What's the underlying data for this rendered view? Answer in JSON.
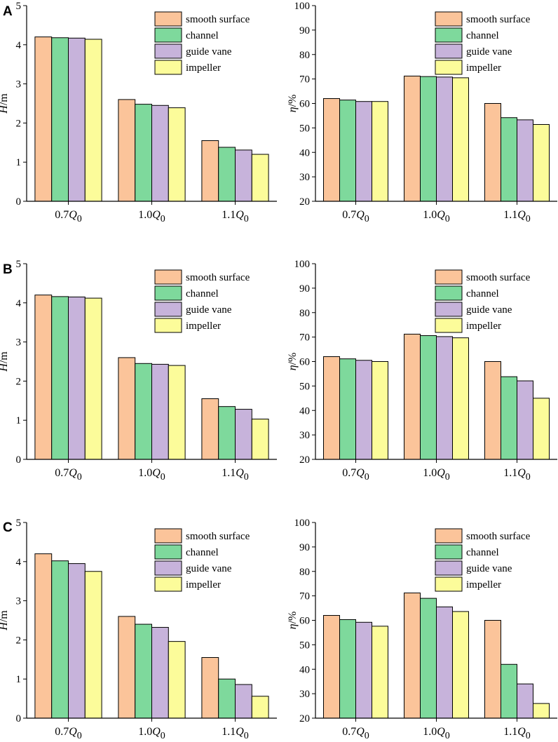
{
  "colors": {
    "smooth surface": "#fbc49a",
    "channel": "#7ed99c",
    "guide vane": "#c7b3db",
    "impeller": "#fcfc9a"
  },
  "chart_data": [
    {
      "panel": "A",
      "type": "bar",
      "title": "",
      "ylabel_italic": "H",
      "ylabel_unit": "/m",
      "ylim": [
        0,
        5
      ],
      "yticks": [
        "0",
        "1",
        "2",
        "3",
        "4",
        "5"
      ],
      "categories": [
        {
          "base": "0.7",
          "q": "Q",
          "sub": "0"
        },
        {
          "base": "1.0",
          "q": "Q",
          "sub": "0"
        },
        {
          "base": "1.1",
          "q": "Q",
          "sub": "0"
        }
      ],
      "series": [
        {
          "name": "smooth surface",
          "values": [
            4.2,
            2.6,
            1.55
          ]
        },
        {
          "name": "channel",
          "values": [
            4.18,
            2.48,
            1.38
          ]
        },
        {
          "name": "guide vane",
          "values": [
            4.17,
            2.45,
            1.31
          ]
        },
        {
          "name": "impeller",
          "values": [
            4.14,
            2.39,
            1.2
          ]
        }
      ],
      "legend": "top-right"
    },
    {
      "panel": "",
      "type": "bar",
      "title": "",
      "ylabel_italic": "η",
      "ylabel_unit": "/%",
      "ylim": [
        20,
        100
      ],
      "yticks": [
        "20",
        "30",
        "40",
        "50",
        "60",
        "70",
        "80",
        "90",
        "100"
      ],
      "categories": [
        {
          "base": "0.7",
          "q": "Q",
          "sub": "0"
        },
        {
          "base": "1.0",
          "q": "Q",
          "sub": "0"
        },
        {
          "base": "1.1",
          "q": "Q",
          "sub": "0"
        }
      ],
      "series": [
        {
          "name": "smooth surface",
          "values": [
            62.0,
            71.2,
            60.0
          ]
        },
        {
          "name": "channel",
          "values": [
            61.4,
            71.0,
            54.2
          ]
        },
        {
          "name": "guide vane",
          "values": [
            60.8,
            70.8,
            53.3
          ]
        },
        {
          "name": "impeller",
          "values": [
            60.8,
            70.5,
            51.4
          ]
        }
      ],
      "legend": "top-right"
    },
    {
      "panel": "B",
      "type": "bar",
      "title": "",
      "ylabel_italic": "H",
      "ylabel_unit": "/m",
      "ylim": [
        0,
        5
      ],
      "yticks": [
        "0",
        "1",
        "2",
        "3",
        "4",
        "5"
      ],
      "categories": [
        {
          "base": "0.7",
          "q": "Q",
          "sub": "0"
        },
        {
          "base": "1.0",
          "q": "Q",
          "sub": "0"
        },
        {
          "base": "1.1",
          "q": "Q",
          "sub": "0"
        }
      ],
      "series": [
        {
          "name": "smooth surface",
          "values": [
            4.2,
            2.6,
            1.55
          ]
        },
        {
          "name": "channel",
          "values": [
            4.16,
            2.45,
            1.35
          ]
        },
        {
          "name": "guide vane",
          "values": [
            4.15,
            2.43,
            1.28
          ]
        },
        {
          "name": "impeller",
          "values": [
            4.12,
            2.4,
            1.03
          ]
        }
      ],
      "legend": "top-right"
    },
    {
      "panel": "",
      "type": "bar",
      "title": "",
      "ylabel_italic": "η",
      "ylabel_unit": "/%",
      "ylim": [
        20,
        100
      ],
      "yticks": [
        "20",
        "30",
        "40",
        "50",
        "60",
        "70",
        "80",
        "90",
        "100"
      ],
      "categories": [
        {
          "base": "0.7",
          "q": "Q",
          "sub": "0"
        },
        {
          "base": "1.0",
          "q": "Q",
          "sub": "0"
        },
        {
          "base": "1.1",
          "q": "Q",
          "sub": "0"
        }
      ],
      "series": [
        {
          "name": "smooth surface",
          "values": [
            62.0,
            71.2,
            60.0
          ]
        },
        {
          "name": "channel",
          "values": [
            61.1,
            70.6,
            53.8
          ]
        },
        {
          "name": "guide vane",
          "values": [
            60.5,
            70.2,
            52.1
          ]
        },
        {
          "name": "impeller",
          "values": [
            60.0,
            69.7,
            45.0
          ]
        }
      ],
      "legend": "top-right"
    },
    {
      "panel": "C",
      "type": "bar",
      "title": "",
      "ylabel_italic": "H",
      "ylabel_unit": "/m",
      "ylim": [
        0,
        5
      ],
      "yticks": [
        "0",
        "1",
        "2",
        "3",
        "4",
        "5"
      ],
      "categories": [
        {
          "base": "0.7",
          "q": "Q",
          "sub": "0"
        },
        {
          "base": "1.0",
          "q": "Q",
          "sub": "0"
        },
        {
          "base": "1.1",
          "q": "Q",
          "sub": "0"
        }
      ],
      "series": [
        {
          "name": "smooth surface",
          "values": [
            4.2,
            2.6,
            1.55
          ]
        },
        {
          "name": "channel",
          "values": [
            4.02,
            2.4,
            1.0
          ]
        },
        {
          "name": "guide vane",
          "values": [
            3.95,
            2.32,
            0.86
          ]
        },
        {
          "name": "impeller",
          "values": [
            3.75,
            1.96,
            0.56
          ]
        }
      ],
      "legend": "top-right"
    },
    {
      "panel": "",
      "type": "bar",
      "title": "",
      "ylabel_italic": "η",
      "ylabel_unit": "/%",
      "ylim": [
        20,
        100
      ],
      "yticks": [
        "20",
        "30",
        "40",
        "50",
        "60",
        "70",
        "80",
        "90",
        "100"
      ],
      "categories": [
        {
          "base": "0.7",
          "q": "Q",
          "sub": "0"
        },
        {
          "base": "1.0",
          "q": "Q",
          "sub": "0"
        },
        {
          "base": "1.1",
          "q": "Q",
          "sub": "0"
        }
      ],
      "series": [
        {
          "name": "smooth surface",
          "values": [
            62.0,
            71.2,
            60.0
          ]
        },
        {
          "name": "channel",
          "values": [
            60.3,
            69.0,
            42.0
          ]
        },
        {
          "name": "guide vane",
          "values": [
            59.2,
            65.5,
            34.0
          ]
        },
        {
          "name": "impeller",
          "values": [
            57.6,
            63.6,
            26.0
          ]
        }
      ],
      "legend": "top-right"
    }
  ]
}
